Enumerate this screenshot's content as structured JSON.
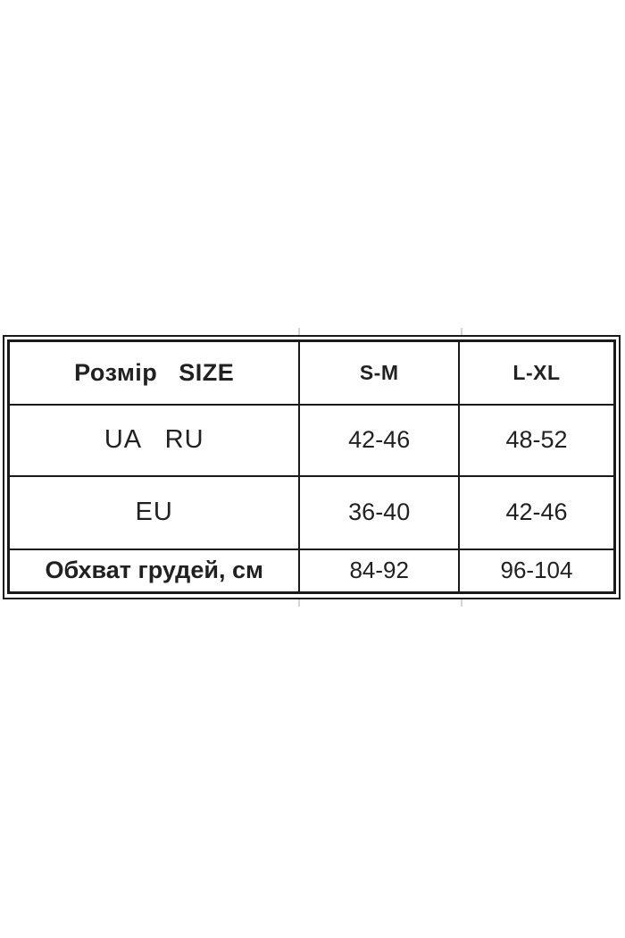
{
  "ui": {
    "background": "#ffffff",
    "border_color": "#1a1a1a",
    "text_color": "#212121"
  },
  "chart_data": {
    "type": "table",
    "description": "Garment size conversion table (Ukrainian)",
    "columns": [
      "Розмір   SIZE",
      "S-M",
      "L-XL"
    ],
    "rows": [
      [
        "UA   RU",
        "42-46",
        "48-52"
      ],
      [
        "EU",
        "36-40",
        "42-46"
      ],
      [
        "Обхват грудей, см",
        "84-92",
        "96-104"
      ]
    ]
  }
}
